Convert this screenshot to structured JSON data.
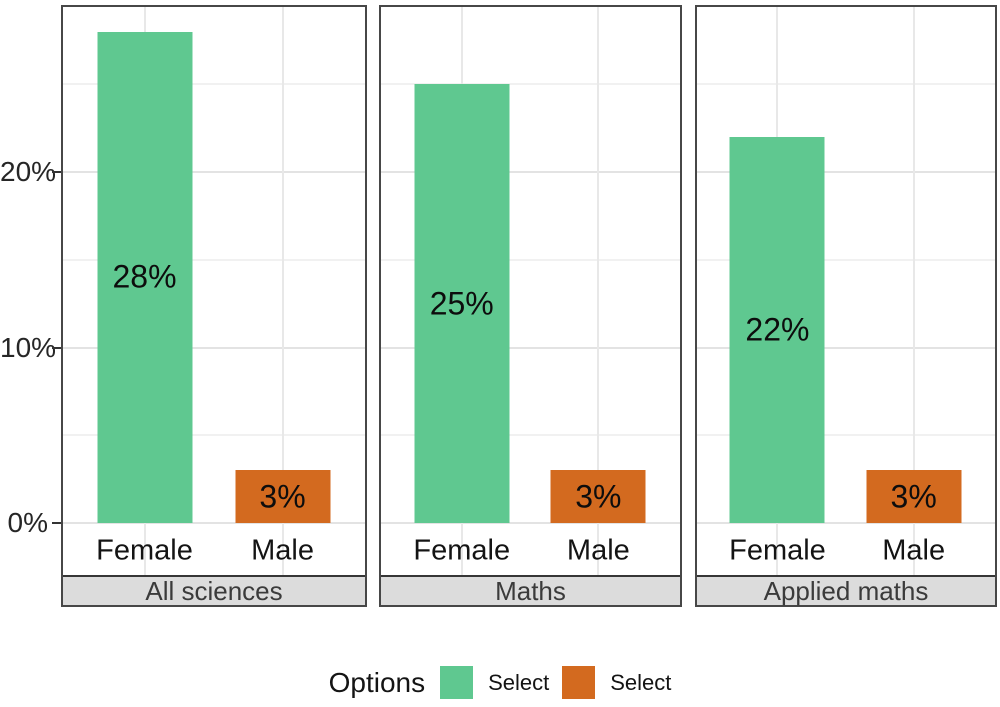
{
  "chart_data": {
    "type": "bar",
    "title": "",
    "categories": [
      "Female",
      "Male"
    ],
    "facets": [
      {
        "label": "All sciences",
        "values": [
          28,
          3
        ],
        "value_labels": [
          "28%",
          "3%"
        ]
      },
      {
        "label": "Maths",
        "values": [
          25,
          3
        ],
        "value_labels": [
          "25%",
          "3%"
        ]
      },
      {
        "label": "Applied maths",
        "values": [
          22,
          3
        ],
        "value_labels": [
          "22%",
          "3%"
        ]
      }
    ],
    "series": [
      {
        "name": "Female",
        "color": "#5fc890"
      },
      {
        "name": "Male",
        "color": "#d36a1f"
      }
    ],
    "y_axis": {
      "ticks": [
        {
          "label": "0%",
          "value": 0
        },
        {
          "label": "10%",
          "value": 10
        },
        {
          "label": "20%",
          "value": 20
        }
      ],
      "minor_grid_values": [
        5,
        15,
        25
      ],
      "range": [
        0,
        29.5
      ],
      "grid": true
    },
    "legend_position": "bottom"
  },
  "legend": {
    "title": "Options",
    "items": [
      {
        "label": "Select",
        "color": "#5fc890"
      },
      {
        "label": "Select",
        "color": "#d36a1f"
      }
    ]
  },
  "style": {
    "panel_border": "#474747",
    "strip_background": "#dcdcdc",
    "strip_text": "#3b3b3b",
    "major_grid": "#e3e3e3",
    "minor_grid": "#f1f1f1",
    "female_bar": "#5fc890",
    "male_bar": "#d36a1f"
  }
}
